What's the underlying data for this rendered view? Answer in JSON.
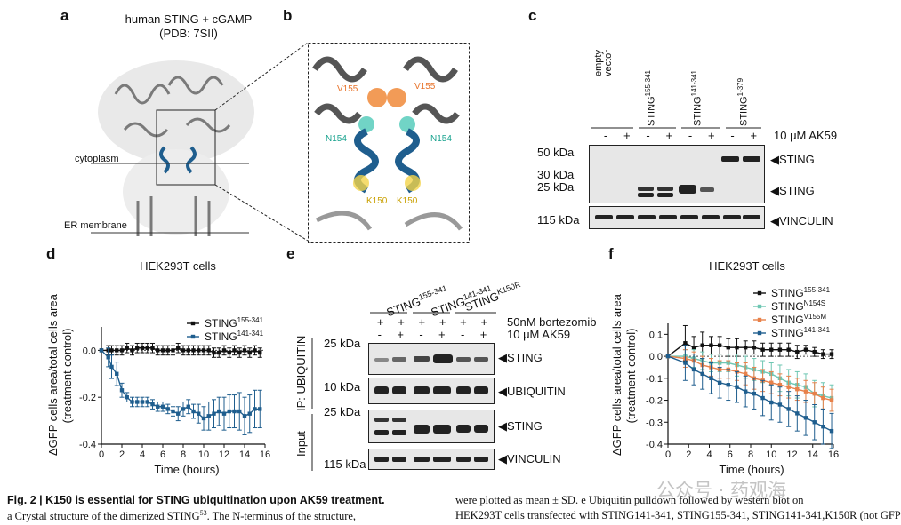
{
  "panels": {
    "a": {
      "label": "a",
      "title_line1": "human STING + cGAMP",
      "title_line2": "(PDB: 7SII)",
      "cytoplasm": "cytoplasm",
      "er_membrane": "ER membrane"
    },
    "b": {
      "label": "b",
      "residues": [
        "V155",
        "V155",
        "N154",
        "N154",
        "K150",
        "K150"
      ]
    },
    "c": {
      "label": "c",
      "lanes": [
        "empty vector",
        "STING155-341",
        "STING141-341",
        "STING1-379"
      ],
      "lane_main": [
        "empty\nvector",
        "STING",
        "STING",
        "STING"
      ],
      "lane_sup": [
        "",
        "155-341",
        "141-341",
        "1-379"
      ],
      "treatment_signs": [
        "-",
        "+",
        "-",
        "+",
        "-",
        "+",
        "-",
        "+"
      ],
      "treatment_label": "10 μM AK59",
      "markers": [
        "50 kDa",
        "30 kDa",
        "25 kDa",
        "115 kDa"
      ],
      "bands": [
        "◀STING",
        "◀STING",
        "◀VINCULIN"
      ]
    },
    "d": {
      "label": "d",
      "title": "HEK293T cells",
      "ylabel_line1": "ΔGFP cells area/total cells area",
      "ylabel_line2": "(treatment-control)",
      "xlabel": "Time (hours)"
    },
    "e": {
      "label": "e",
      "lanes_main": [
        "STING",
        "STING",
        "STING"
      ],
      "lanes_sup": [
        "155-341",
        "141-341",
        "K150R"
      ],
      "row1_signs": [
        "+",
        "+",
        "+",
        "+",
        "+",
        "+"
      ],
      "row2_signs": [
        "-",
        "+",
        "-",
        "+",
        "-",
        "+"
      ],
      "treatment1": "50nM bortezomib",
      "treatment2": "10 μM AK59",
      "ip_label": "IP: UBIQUITIN",
      "input_label": "Input",
      "markers": [
        "25 kDa",
        "10 kDa",
        "25 kDa",
        "115 kDa"
      ],
      "bands": [
        "◀STING",
        "◀UBIQUITIN",
        "◀STING",
        "◀VINCULIN"
      ]
    },
    "f": {
      "label": "f",
      "title": "HEK293T cells",
      "ylabel_line1": "ΔGFP cells area/total cells area",
      "ylabel_line2": "(treatment-control)",
      "xlabel": "Time (hours)"
    }
  },
  "chart_data": [
    {
      "panel": "d",
      "type": "line",
      "title": "HEK293T cells",
      "xlabel": "Time (hours)",
      "ylabel": "ΔGFP cells area/total cells area (treatment-control)",
      "xlim": [
        0,
        16
      ],
      "ylim": [
        -0.4,
        0.1
      ],
      "xticks": [
        0,
        2,
        4,
        6,
        8,
        10,
        12,
        14,
        16
      ],
      "yticks": [
        -0.4,
        -0.2,
        0.0
      ],
      "ytick_labels": [
        "-0.4",
        "-0.2",
        "0.0"
      ],
      "legend_position": "top-right",
      "series": [
        {
          "name": "STING",
          "name_sup": "155-341",
          "color": "#111111",
          "marker": "square",
          "x": [
            0,
            0.67,
            1,
            1.5,
            2,
            2.5,
            3,
            3.5,
            4,
            4.5,
            5,
            5.5,
            6,
            6.5,
            7,
            7.5,
            8,
            8.5,
            9,
            9.5,
            10,
            10.5,
            11,
            11.5,
            12,
            12.5,
            13,
            13.5,
            14,
            14.5,
            15,
            15.5
          ],
          "y": [
            0,
            0.0,
            0.0,
            0.0,
            0.0,
            0.01,
            0.0,
            0.01,
            0.01,
            0.01,
            0.01,
            0.0,
            0.0,
            0.0,
            0.0,
            0.01,
            0.0,
            0.0,
            0.0,
            0.0,
            0.0,
            0.0,
            -0.01,
            -0.01,
            0.0,
            -0.01,
            0.0,
            -0.01,
            0.0,
            -0.01,
            0.0,
            -0.01
          ],
          "err": [
            0,
            0.02,
            0.02,
            0.02,
            0.02,
            0.02,
            0.02,
            0.02,
            0.02,
            0.02,
            0.02,
            0.02,
            0.02,
            0.02,
            0.02,
            0.02,
            0.02,
            0.02,
            0.02,
            0.02,
            0.02,
            0.02,
            0.02,
            0.02,
            0.02,
            0.02,
            0.02,
            0.02,
            0.02,
            0.02,
            0.02,
            0.02
          ]
        },
        {
          "name": "STING",
          "name_sup": "141-341",
          "color": "#1f5e8e",
          "marker": "square",
          "x": [
            0,
            0.67,
            1,
            1.5,
            2,
            2.5,
            3,
            3.5,
            4,
            4.5,
            5,
            5.5,
            6,
            6.5,
            7,
            7.5,
            8,
            8.5,
            9,
            9.5,
            10,
            10.5,
            11,
            11.5,
            12,
            12.5,
            13,
            13.5,
            14,
            14.5,
            15,
            15.5
          ],
          "y": [
            0,
            -0.03,
            -0.07,
            -0.1,
            -0.17,
            -0.2,
            -0.22,
            -0.22,
            -0.22,
            -0.22,
            -0.23,
            -0.24,
            -0.24,
            -0.25,
            -0.26,
            -0.27,
            -0.25,
            -0.24,
            -0.26,
            -0.27,
            -0.29,
            -0.28,
            -0.27,
            -0.26,
            -0.27,
            -0.26,
            -0.26,
            -0.26,
            -0.28,
            -0.27,
            -0.25,
            -0.25
          ],
          "err": [
            0,
            0.04,
            0.05,
            0.05,
            0.03,
            0.02,
            0.02,
            0.02,
            0.02,
            0.02,
            0.02,
            0.02,
            0.02,
            0.02,
            0.02,
            0.03,
            0.03,
            0.03,
            0.03,
            0.04,
            0.05,
            0.06,
            0.06,
            0.06,
            0.07,
            0.07,
            0.07,
            0.08,
            0.08,
            0.08,
            0.08,
            0.08
          ]
        }
      ]
    },
    {
      "panel": "f",
      "type": "line",
      "title": "HEK293T cells",
      "xlabel": "Time (hours)",
      "ylabel": "ΔGFP cells area/total cells area (treatment-control)",
      "xlim": [
        0,
        16
      ],
      "ylim": [
        -0.4,
        0.15
      ],
      "xticks": [
        0,
        2,
        4,
        6,
        8,
        10,
        12,
        14,
        16
      ],
      "yticks": [
        -0.4,
        -0.3,
        -0.2,
        -0.1,
        0.0,
        0.1
      ],
      "ytick_labels": [
        "-0.4",
        "-0.3",
        "-0.2",
        "-0.1",
        "0.0",
        "0.1"
      ],
      "legend_position": "top-right",
      "series": [
        {
          "name": "STING",
          "name_sup": "155-341",
          "color": "#111111",
          "marker": "square",
          "x": [
            0,
            1.67,
            2.5,
            3.33,
            4.17,
            5,
            5.83,
            6.67,
            7.5,
            8.33,
            9.17,
            10,
            10.83,
            11.67,
            12.5,
            13.33,
            14.17,
            15,
            15.83
          ],
          "y": [
            0,
            0.06,
            0.04,
            0.05,
            0.05,
            0.05,
            0.04,
            0.04,
            0.04,
            0.04,
            0.03,
            0.03,
            0.03,
            0.03,
            0.02,
            0.03,
            0.02,
            0.01,
            0.01
          ],
          "err": [
            0,
            0.08,
            0.05,
            0.06,
            0.04,
            0.04,
            0.04,
            0.04,
            0.03,
            0.03,
            0.03,
            0.03,
            0.03,
            0.03,
            0.03,
            0.02,
            0.02,
            0.02,
            0.02
          ]
        },
        {
          "name": "STING",
          "name_sup": "N154S",
          "color": "#6fc7b3",
          "marker": "square",
          "x": [
            0,
            1.67,
            2.5,
            3.33,
            4.17,
            5,
            5.83,
            6.67,
            7.5,
            8.33,
            9.17,
            10,
            10.83,
            11.67,
            12.5,
            13.33,
            14.17,
            15,
            15.83
          ],
          "y": [
            0,
            0.0,
            -0.01,
            -0.02,
            -0.03,
            -0.03,
            -0.03,
            -0.04,
            -0.05,
            -0.06,
            -0.07,
            -0.08,
            -0.1,
            -0.12,
            -0.13,
            -0.14,
            -0.17,
            -0.18,
            -0.19
          ],
          "err": [
            0,
            0.03,
            0.04,
            0.04,
            0.04,
            0.04,
            0.04,
            0.05,
            0.05,
            0.05,
            0.05,
            0.05,
            0.06,
            0.06,
            0.06,
            0.06,
            0.06,
            0.06,
            0.06
          ]
        },
        {
          "name": "STING",
          "name_sup": "V155M",
          "color": "#e8814a",
          "marker": "square",
          "x": [
            0,
            1.67,
            2.5,
            3.33,
            4.17,
            5,
            5.83,
            6.67,
            7.5,
            8.33,
            9.17,
            10,
            10.83,
            11.67,
            12.5,
            13.33,
            14.17,
            15,
            15.83
          ],
          "y": [
            0,
            -0.01,
            -0.02,
            -0.04,
            -0.05,
            -0.06,
            -0.06,
            -0.07,
            -0.08,
            -0.1,
            -0.11,
            -0.12,
            -0.13,
            -0.14,
            -0.15,
            -0.16,
            -0.17,
            -0.19,
            -0.2
          ],
          "err": [
            0,
            0.04,
            0.04,
            0.04,
            0.04,
            0.04,
            0.04,
            0.04,
            0.05,
            0.05,
            0.05,
            0.05,
            0.05,
            0.05,
            0.05,
            0.05,
            0.05,
            0.05,
            0.05
          ]
        },
        {
          "name": "STING",
          "name_sup": "141-341",
          "color": "#1f5e8e",
          "marker": "square",
          "x": [
            0,
            1.67,
            2.5,
            3.33,
            4.17,
            5,
            5.83,
            6.67,
            7.5,
            8.33,
            9.17,
            10,
            10.83,
            11.67,
            12.5,
            13.33,
            14.17,
            15,
            15.83
          ],
          "y": [
            0,
            -0.03,
            -0.06,
            -0.08,
            -0.1,
            -0.12,
            -0.13,
            -0.14,
            -0.16,
            -0.17,
            -0.19,
            -0.21,
            -0.22,
            -0.24,
            -0.26,
            -0.28,
            -0.3,
            -0.32,
            -0.34
          ],
          "err": [
            0,
            0.08,
            0.07,
            0.07,
            0.07,
            0.07,
            0.07,
            0.07,
            0.07,
            0.07,
            0.08,
            0.08,
            0.08,
            0.08,
            0.08,
            0.08,
            0.08,
            0.08,
            0.08
          ]
        }
      ]
    }
  ],
  "caption": {
    "fig": "Fig. 2 | K150 is essential for STING ubiquitination upon AK59 treatment.",
    "left_line2_pre": "a Crystal structure of the dimerized STING",
    "left_line2_sup": "53",
    "left_line2_post": ". The N-terminus of the structure,",
    "right_line1": "were plotted as mean ± SD. e Ubiquitin pulldown followed by western blot on",
    "right_line2": "HEK293T cells transfected with STING141-341, STING155-341, STING141-341,K150R (not GFP"
  },
  "watermark": "公众号 · 药观海"
}
